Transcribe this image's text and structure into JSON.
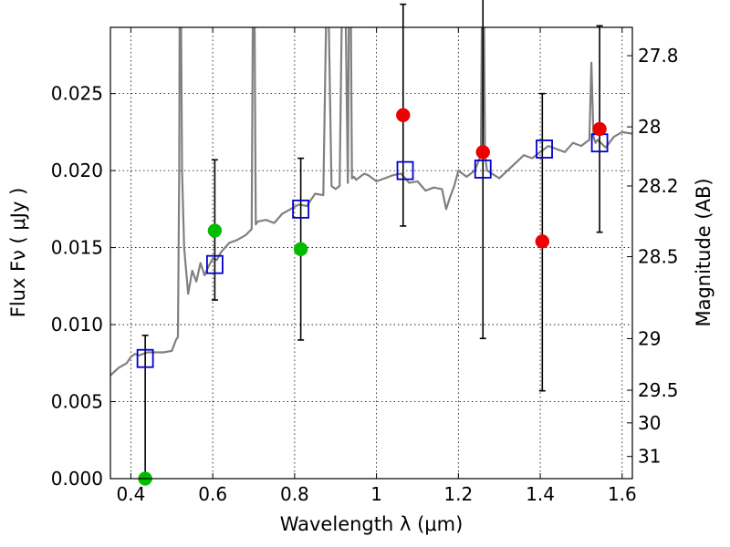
{
  "chart_data": {
    "type": "scatter",
    "xlabel": "Wavelength  λ (μm)",
    "ylabel": "Flux  Fν  ( μJy )",
    "y2label": "Magnitude (AB)",
    "xlim": [
      0.35,
      1.625
    ],
    "ylim": [
      0.0,
      0.0293
    ],
    "x_ticks": [
      0.4,
      0.6,
      0.8,
      1.0,
      1.2,
      1.4,
      1.6
    ],
    "x_tick_labels": [
      "0.4",
      "0.6",
      "0.8",
      "1",
      "1.2",
      "1.4",
      "1.6"
    ],
    "y_ticks": [
      0.0,
      0.005,
      0.01,
      0.015,
      0.02,
      0.025
    ],
    "y_tick_labels": [
      "0.000",
      "0.005",
      "0.010",
      "0.015",
      "0.020",
      "0.025"
    ],
    "y2_ticks": [
      {
        "label": "27.8",
        "flux": 0.02746
      },
      {
        "label": "28",
        "flux": 0.02284
      },
      {
        "label": "28.2",
        "flux": 0.019
      },
      {
        "label": "28.5",
        "flux": 0.01441
      },
      {
        "label": "29",
        "flux": 0.00909
      },
      {
        "label": "29.5",
        "flux": 0.00574
      },
      {
        "label": "30",
        "flux": 0.00362
      },
      {
        "label": "31",
        "flux": 0.00144
      }
    ],
    "grid": true,
    "colors": {
      "template": "#808080",
      "model": "#0000cc",
      "green": "#00bb00",
      "red": "#ee0000",
      "errorbar": "#000000"
    },
    "template_spectrum": {
      "x": [
        0.35,
        0.37,
        0.39,
        0.4,
        0.41,
        0.42,
        0.44,
        0.46,
        0.48,
        0.5,
        0.51,
        0.515,
        0.518,
        0.52,
        0.525,
        0.53,
        0.54,
        0.55,
        0.56,
        0.57,
        0.58,
        0.59,
        0.6,
        0.61,
        0.62,
        0.64,
        0.66,
        0.68,
        0.695,
        0.7,
        0.705,
        0.71,
        0.73,
        0.75,
        0.77,
        0.79,
        0.81,
        0.83,
        0.85,
        0.87,
        0.88,
        0.89,
        0.9,
        0.91,
        0.92,
        0.93,
        0.935,
        0.94,
        0.945,
        0.95,
        0.96,
        0.97,
        0.98,
        1.0,
        1.02,
        1.04,
        1.06,
        1.08,
        1.1,
        1.12,
        1.14,
        1.16,
        1.17,
        1.18,
        1.19,
        1.2,
        1.22,
        1.24,
        1.255,
        1.26,
        1.265,
        1.27,
        1.3,
        1.32,
        1.34,
        1.36,
        1.38,
        1.4,
        1.42,
        1.44,
        1.46,
        1.48,
        1.5,
        1.52,
        1.525,
        1.53,
        1.535,
        1.54,
        1.56,
        1.58,
        1.6,
        1.625
      ],
      "y": [
        0.0067,
        0.0072,
        0.0075,
        0.0079,
        0.0081,
        0.008,
        0.0082,
        0.0082,
        0.0082,
        0.0083,
        0.009,
        0.0092,
        0.02,
        0.04,
        0.02,
        0.015,
        0.012,
        0.0135,
        0.0128,
        0.014,
        0.0132,
        0.0138,
        0.0143,
        0.0142,
        0.0147,
        0.0153,
        0.0155,
        0.0158,
        0.0162,
        0.04,
        0.0165,
        0.0167,
        0.0168,
        0.0166,
        0.0172,
        0.0175,
        0.0178,
        0.0177,
        0.0185,
        0.0184,
        0.035,
        0.019,
        0.0188,
        0.019,
        0.04,
        0.0192,
        0.04,
        0.0195,
        0.0196,
        0.0194,
        0.0196,
        0.0198,
        0.0197,
        0.0193,
        0.0195,
        0.0197,
        0.0198,
        0.0192,
        0.0193,
        0.0187,
        0.0189,
        0.0188,
        0.0175,
        0.0183,
        0.019,
        0.02,
        0.0196,
        0.02,
        0.021,
        0.04,
        0.021,
        0.02,
        0.0195,
        0.02,
        0.0205,
        0.021,
        0.0208,
        0.0212,
        0.0216,
        0.0214,
        0.0212,
        0.0218,
        0.0216,
        0.022,
        0.027,
        0.0222,
        0.0218,
        0.022,
        0.0215,
        0.0222,
        0.0225,
        0.0224
      ]
    },
    "series": [
      {
        "name": "",
        "marker": "open-square",
        "color": "#0000cc",
        "x": [
          0.435,
          0.605,
          0.815,
          1.07,
          1.26,
          1.41,
          1.545
        ],
        "y": [
          0.0078,
          0.0139,
          0.0175,
          0.02,
          0.0201,
          0.0214,
          0.0218
        ]
      },
      {
        "name": "",
        "marker": "filled-circle",
        "color": "#00bb00",
        "x": [
          0.435,
          0.605,
          0.815
        ],
        "y": [
          0.0,
          0.0161,
          0.0149
        ],
        "yerr_low": [
          0.0,
          0.0045,
          0.0059
        ],
        "yerr_high": [
          0.0093,
          0.0046,
          0.0059
        ]
      },
      {
        "name": "",
        "marker": "filled-circle",
        "color": "#ee0000",
        "x": [
          1.065,
          1.26,
          1.405,
          1.545
        ],
        "y": [
          0.0236,
          0.0212,
          0.0154,
          0.0227
        ],
        "yerr_low": [
          0.0072,
          0.0121,
          0.0097,
          0.0067
        ],
        "yerr_high": [
          0.0072,
          0.0121,
          0.0096,
          0.0067
        ]
      }
    ]
  }
}
